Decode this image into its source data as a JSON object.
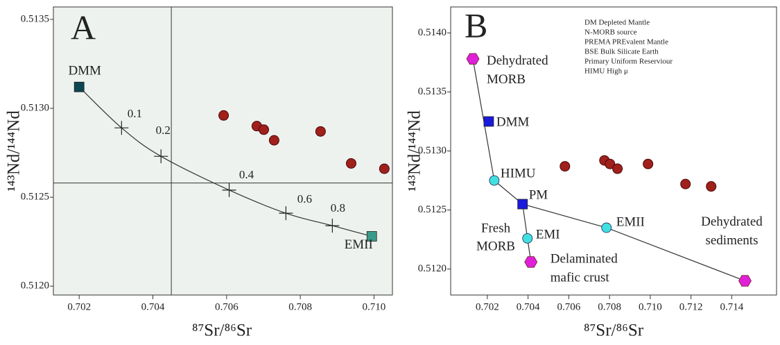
{
  "chart_data": [
    {
      "type": "scatter",
      "title": "A",
      "x_label": "⁸⁷Sr/⁸⁶Sr",
      "y_label": "¹⁴³Nd/¹⁴⁴Nd",
      "background": "#eef2ee",
      "xlim": [
        0.7013,
        0.7105
      ],
      "ylim": [
        0.51195,
        0.51357
      ],
      "xticks": [
        0.702,
        0.704,
        0.706,
        0.708,
        {
          "value": 0.71,
          "label": "0.710"
        }
      ],
      "yticks": [
        0.5135,
        {
          "value": 0.513,
          "label": "0.5130"
        },
        0.5125,
        {
          "value": 0.512,
          "label": "0.5120"
        }
      ],
      "reference_lines": {
        "x": 0.7045,
        "y": 0.51258
      },
      "samples": {
        "color": "#a0201c",
        "x": [
          0.70592,
          0.70682,
          0.70701,
          0.70729,
          0.70855,
          0.70938,
          0.71028
        ],
        "y": [
          0.51296,
          0.5129,
          0.51288,
          0.51282,
          0.51287,
          0.51269,
          0.51266
        ]
      },
      "endmembers": {
        "labels": [
          [
            "DMM"
          ],
          [
            "EMII"
          ]
        ],
        "shapes": [
          "square",
          "square"
        ],
        "colors": [
          "#0d4650",
          "#3a9a8a"
        ],
        "x": [
          0.702,
          0.70994
        ],
        "y": [
          0.51312,
          0.51228
        ]
      },
      "mixing": {
        "labels": [
          "0.1",
          "0.2",
          "0.4",
          "0.6",
          "0.8"
        ],
        "x": [
          0.70315,
          0.70422,
          0.70607,
          0.70761,
          0.70887
        ],
        "y": [
          0.51289,
          0.51273,
          0.51254,
          0.51241,
          0.51234
        ]
      }
    },
    {
      "type": "scatter",
      "title": "B",
      "x_label": "⁸⁷Sr/⁸⁶Sr",
      "y_label": "¹⁴³Nd/¹⁴⁴Nd",
      "background": "#ffffff",
      "xlim": [
        0.7002,
        0.7162
      ],
      "ylim": [
        0.51178,
        0.51422
      ],
      "xticks": [
        0.702,
        0.704,
        0.706,
        0.708,
        {
          "value": 0.71,
          "label": "0.710"
        },
        0.712,
        0.714
      ],
      "yticks": [
        {
          "value": 0.514,
          "label": "0.5140"
        },
        0.5135,
        {
          "value": 0.513,
          "label": "0.5130"
        },
        0.5125,
        {
          "value": 0.512,
          "label": "0.5120"
        }
      ],
      "legend_text": [
        "DM Depleted Mantle",
        "N-MORB source",
        "PREMA PREvalent Mantle",
        "BSE Bulk Silicate Earth",
        "Primary Uniform Reserviour",
        "HIMU High μ"
      ],
      "annotation": [
        "Fresh",
        "MORB"
      ],
      "samples": {
        "color": "#a0201c",
        "x": [
          0.70581,
          0.70775,
          0.70802,
          0.70839,
          0.70989,
          0.71173,
          0.71299
        ],
        "y": [
          0.51287,
          0.51292,
          0.51289,
          0.51285,
          0.51289,
          0.51272,
          0.5127
        ]
      },
      "endmembers": {
        "labels": [
          [
            "Dehydrated",
            "MORB"
          ],
          [
            "DMM"
          ],
          [
            "HIMU"
          ],
          [
            "PM"
          ],
          [
            "EMI"
          ],
          [
            "Delaminated",
            "mafic crust"
          ],
          [
            "EMII"
          ],
          [
            "Dehydrated",
            "sediments"
          ]
        ],
        "shapes": [
          "hexagon",
          "square",
          "circle",
          "square",
          "circle",
          "hexagon",
          "circle",
          "hexagon"
        ],
        "colors": [
          "#e020d8",
          "#1a1adc",
          "#40e0e0",
          "#1a1adc",
          "#40e0e0",
          "#e020d8",
          "#40e0e0",
          "#e020d8"
        ],
        "x": [
          0.70129,
          0.70207,
          0.70234,
          0.70373,
          0.70397,
          0.70414,
          0.70785,
          0.71465
        ],
        "y": [
          0.51378,
          0.51325,
          0.51275,
          0.51255,
          0.51226,
          0.51206,
          0.51235,
          0.5119
        ]
      }
    }
  ]
}
